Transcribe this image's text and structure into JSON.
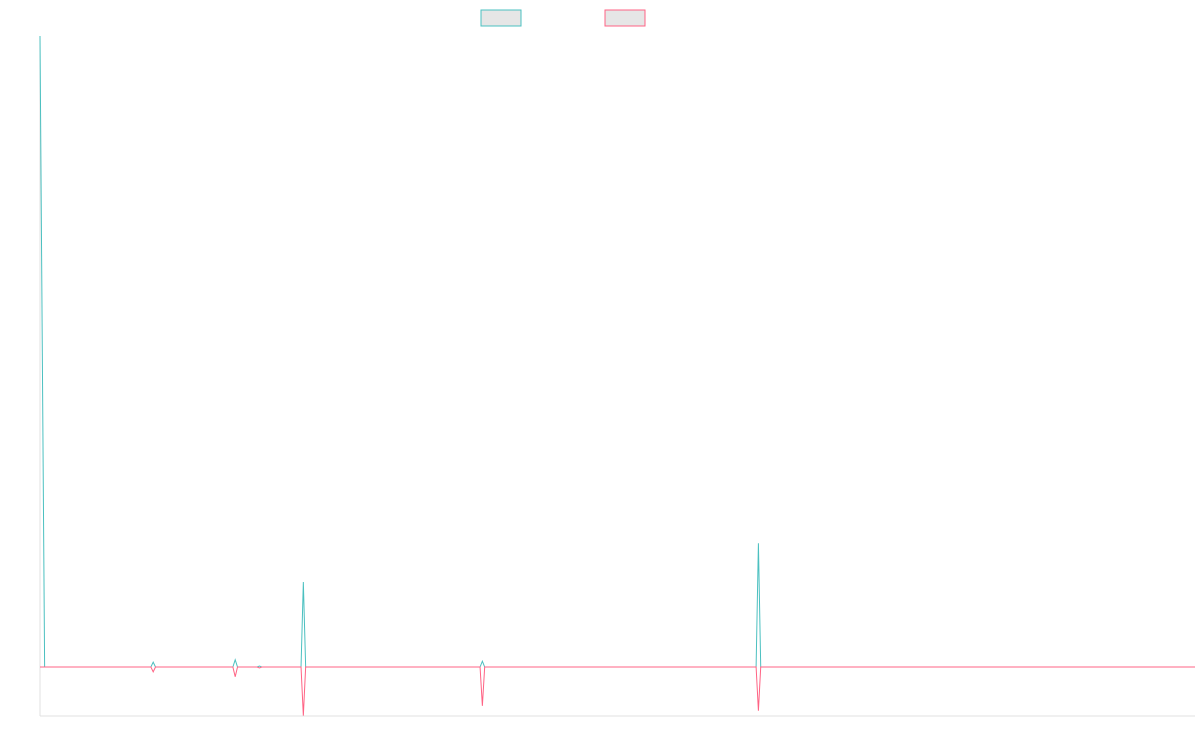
{
  "chart_data": {
    "type": "line",
    "title": "",
    "xlabel": "",
    "ylabel": "",
    "grid": false,
    "legend": {
      "placement": "top-center"
    },
    "baseline": 0,
    "ylim": [
      -1,
      13
    ],
    "xlim": [
      0,
      1000
    ],
    "colors": {
      "series_a": "#4bc0c0",
      "series_b": "#ff6384"
    },
    "series": [
      {
        "color": "#4bc0c0",
        "points": [
          [
            0,
            13
          ],
          [
            4,
            0
          ],
          [
            96,
            0
          ],
          [
            98,
            0.1
          ],
          [
            100,
            0
          ],
          [
            167,
            0
          ],
          [
            169,
            0.15
          ],
          [
            171,
            0
          ],
          [
            188,
            0
          ],
          [
            190,
            0.02
          ],
          [
            192,
            0
          ],
          [
            226,
            0
          ],
          [
            228,
            1.75
          ],
          [
            230,
            0
          ],
          [
            381,
            0
          ],
          [
            383,
            0.12
          ],
          [
            385,
            0
          ],
          [
            620,
            0
          ],
          [
            622,
            2.55
          ],
          [
            624,
            0
          ],
          [
            1000,
            0
          ]
        ]
      },
      {
        "color": "#ff6384",
        "points": [
          [
            0,
            0
          ],
          [
            96,
            0
          ],
          [
            98,
            -0.1
          ],
          [
            100,
            0
          ],
          [
            167,
            0
          ],
          [
            169,
            -0.2
          ],
          [
            171,
            0
          ],
          [
            188,
            0
          ],
          [
            190,
            -0.02
          ],
          [
            192,
            0
          ],
          [
            226,
            0
          ],
          [
            228,
            -1
          ],
          [
            230,
            0
          ],
          [
            381,
            0
          ],
          [
            383,
            -0.8
          ],
          [
            385,
            0
          ],
          [
            620,
            0
          ],
          [
            622,
            -0.9
          ],
          [
            624,
            0
          ],
          [
            1000,
            0
          ]
        ]
      }
    ]
  }
}
